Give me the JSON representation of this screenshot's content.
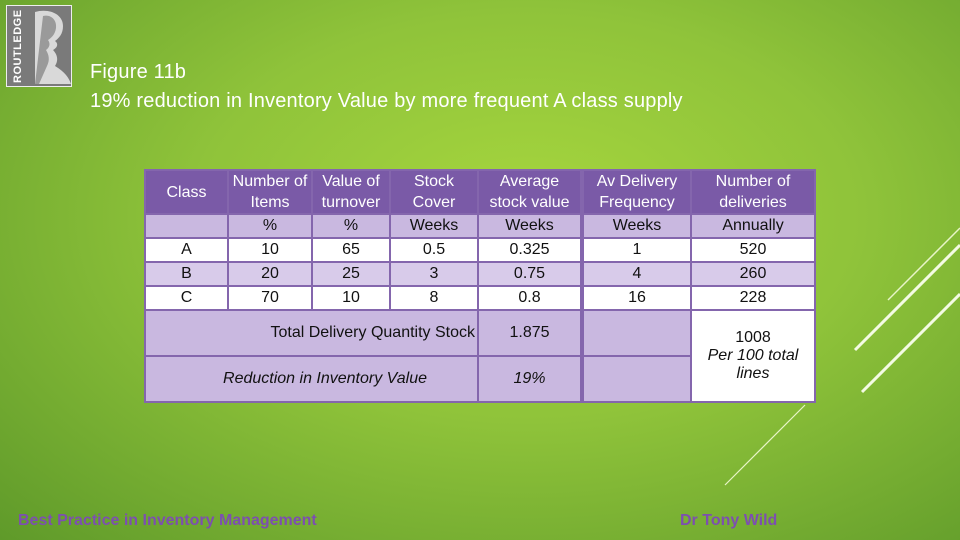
{
  "logo": {
    "brand_text": "ROUTLEDGE"
  },
  "title": {
    "line1": "Figure 11b",
    "line2": "19% reduction in Inventory Value by more frequent A class supply"
  },
  "table": {
    "header_row1": [
      "Class",
      "Number of Items",
      "Value of turnover",
      "Stock Cover",
      "Average stock value",
      "Av Delivery Frequency",
      "Number of deliveries"
    ],
    "header_row2": [
      "",
      "%",
      "%",
      "Weeks",
      "Weeks",
      "Weeks",
      "Annually"
    ],
    "rows": [
      [
        "A",
        "10",
        "65",
        "0.5",
        "0.325",
        "1",
        "520"
      ],
      [
        "B",
        "20",
        "25",
        "3",
        "0.75",
        "4",
        "260"
      ],
      [
        "C",
        "70",
        "10",
        "8",
        "0.8",
        "16",
        "228"
      ]
    ],
    "total_label": "Total Delivery Quantity Stock",
    "total_value": "1.875",
    "deliveries_total": "1008",
    "deliveries_note": "Per 100 total lines",
    "reduction_label": "Reduction in Inventory Value",
    "reduction_value": "19%"
  },
  "footer": {
    "left": "Best Practice in Inventory Management",
    "right": "Dr Tony Wild"
  },
  "colors": {
    "background": "#8fc33a",
    "header_purple": "#7a5aa7",
    "lavender": "#c9b8e0",
    "footer_text": "#7d4fb0"
  }
}
